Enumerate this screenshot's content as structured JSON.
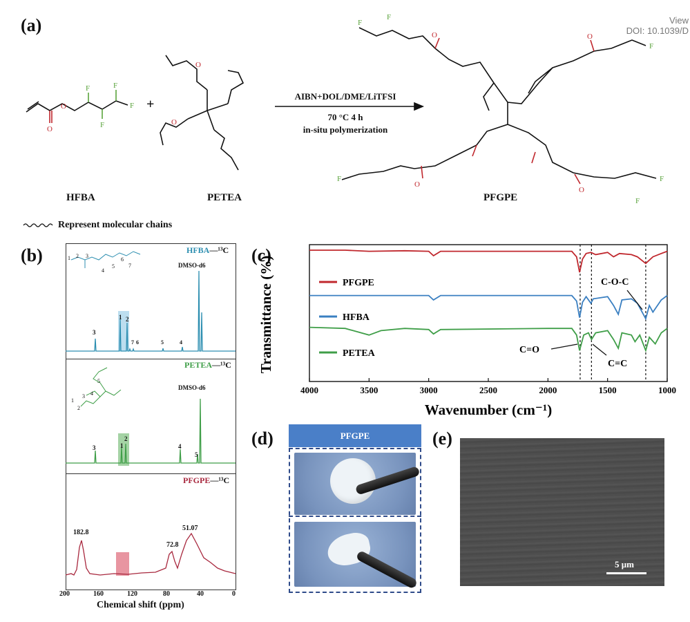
{
  "header": {
    "panel_a": "(a)",
    "view_line1": "View",
    "view_line2": "DOI: 10.1039/D"
  },
  "scheme": {
    "reactant1": "HFBA",
    "reactant2": "PETEA",
    "product": "PFGPE",
    "plus": "+",
    "cond1": "AIBN+DOL/DME/LiTFSI",
    "cond2": "70 °C  4 h",
    "cond3": "in-situ polymerization",
    "note": "Represent molecular chains",
    "atom_F": "F",
    "atom_O": "O"
  },
  "nmr": {
    "panel": "(b)",
    "top_title": "HFBA",
    "mid_title": "PETEA",
    "bot_title": "PFGPE",
    "nucleus": "—¹³C",
    "solvent": "DMSO-d6",
    "top_labels": [
      "3",
      "1",
      "2",
      "7",
      "6",
      "5",
      "4"
    ],
    "mid_labels": [
      "3",
      "1",
      "2",
      "4",
      "5"
    ],
    "top_struct_nums": [
      "1",
      "2",
      "3",
      "4",
      "5",
      "6",
      "7"
    ],
    "mid_struct_nums": [
      "1",
      "2",
      "3",
      "4",
      "5"
    ],
    "bot_labels": [
      "182.8",
      "72.8",
      "51.07"
    ],
    "xticks": [
      "200",
      "160",
      "120",
      "80",
      "40",
      "0"
    ],
    "xlabel": "Chemical shift (ppm)"
  },
  "chart_data": {
    "type": "line",
    "title": "",
    "xlabel": "Wavenumber (cm⁻¹)",
    "ylabel": "Transmittance (%)",
    "xlim": [
      4000,
      1000
    ],
    "x_reversed": true,
    "xticks": [
      "4000",
      "3500",
      "3000",
      "2500",
      "2000",
      "1500",
      "1000"
    ],
    "reference_lines": [
      1730,
      1635,
      1180
    ],
    "annotations": [
      "C-O-C",
      "C=O",
      "C=C"
    ],
    "series": [
      {
        "name": "PFGPE",
        "color": "#c0272d",
        "points": [
          [
            4000,
            96
          ],
          [
            3700,
            96
          ],
          [
            3500,
            95
          ],
          [
            3200,
            95.5
          ],
          [
            3000,
            95
          ],
          [
            2960,
            91
          ],
          [
            2900,
            95
          ],
          [
            2000,
            95
          ],
          [
            1800,
            95
          ],
          [
            1760,
            90
          ],
          [
            1735,
            76
          ],
          [
            1710,
            88
          ],
          [
            1680,
            93
          ],
          [
            1640,
            94
          ],
          [
            1600,
            92
          ],
          [
            1500,
            94
          ],
          [
            1450,
            90
          ],
          [
            1400,
            93
          ],
          [
            1300,
            92
          ],
          [
            1250,
            90
          ],
          [
            1180,
            84
          ],
          [
            1120,
            90
          ],
          [
            1050,
            93
          ],
          [
            1000,
            95
          ]
        ]
      },
      {
        "name": "HFBA",
        "color": "#3a7fc1",
        "points": [
          [
            4000,
            95
          ],
          [
            3500,
            95
          ],
          [
            3000,
            95
          ],
          [
            2960,
            91
          ],
          [
            2900,
            95
          ],
          [
            2000,
            95
          ],
          [
            1800,
            95
          ],
          [
            1760,
            90
          ],
          [
            1735,
            75
          ],
          [
            1710,
            89
          ],
          [
            1680,
            94
          ],
          [
            1640,
            88
          ],
          [
            1620,
            92
          ],
          [
            1500,
            94
          ],
          [
            1450,
            86
          ],
          [
            1410,
            78
          ],
          [
            1380,
            91
          ],
          [
            1300,
            92
          ],
          [
            1250,
            88
          ],
          [
            1180,
            74
          ],
          [
            1150,
            86
          ],
          [
            1120,
            80
          ],
          [
            1050,
            91
          ],
          [
            1000,
            95
          ]
        ]
      },
      {
        "name": "PETEA",
        "color": "#3f9e48",
        "points": [
          [
            4000,
            95
          ],
          [
            3700,
            94
          ],
          [
            3500,
            88
          ],
          [
            3400,
            92
          ],
          [
            3200,
            94
          ],
          [
            3000,
            93
          ],
          [
            2960,
            89
          ],
          [
            2900,
            93
          ],
          [
            2000,
            94
          ],
          [
            1800,
            94
          ],
          [
            1760,
            88
          ],
          [
            1735,
            74
          ],
          [
            1700,
            88
          ],
          [
            1660,
            90
          ],
          [
            1635,
            84
          ],
          [
            1600,
            90
          ],
          [
            1500,
            92
          ],
          [
            1450,
            84
          ],
          [
            1410,
            76
          ],
          [
            1380,
            90
          ],
          [
            1300,
            88
          ],
          [
            1270,
            82
          ],
          [
            1230,
            88
          ],
          [
            1180,
            74
          ],
          [
            1150,
            86
          ],
          [
            1100,
            80
          ],
          [
            1050,
            90
          ],
          [
            1000,
            94
          ]
        ]
      }
    ]
  },
  "ftir": {
    "panel": "(c)",
    "legend": [
      "PFGPE",
      "HFBA",
      "PETEA"
    ],
    "ann_coc": "C-O-C",
    "ann_co": "C=O",
    "ann_cc": "C=C"
  },
  "photo": {
    "panel": "(d)",
    "banner": "PFGPE"
  },
  "sem": {
    "panel": "(e)",
    "scale": "5 μm"
  }
}
